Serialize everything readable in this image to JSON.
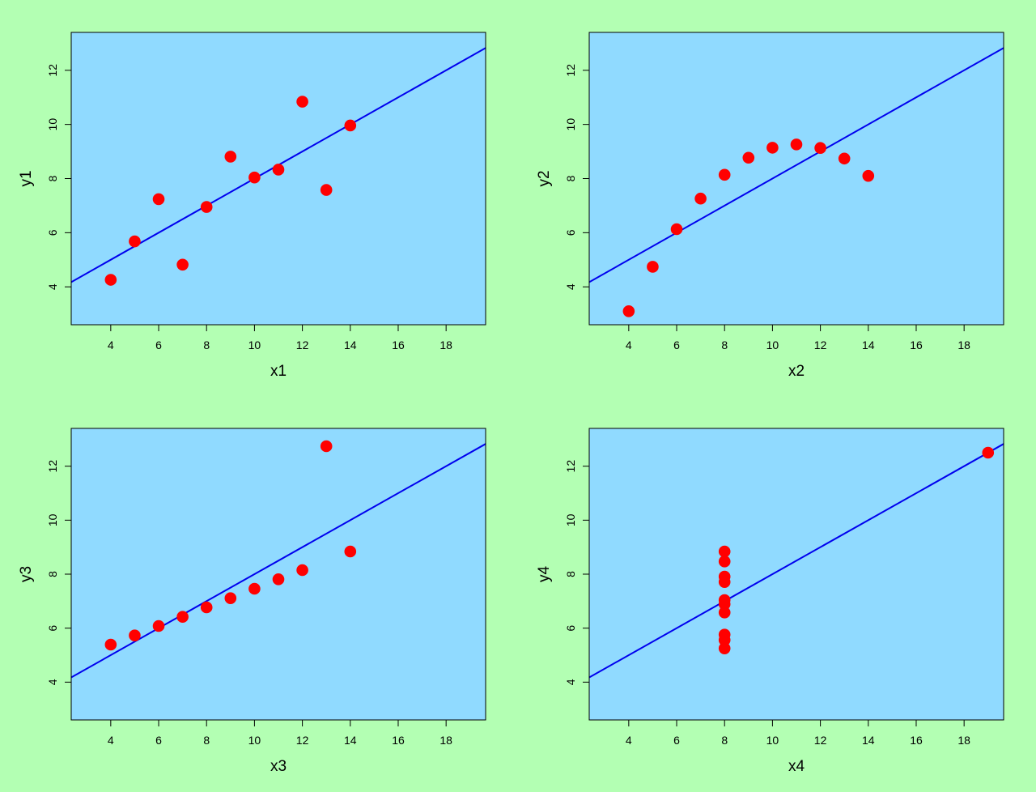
{
  "colors": {
    "figure_background": "#b3ffb3",
    "panel_background": "#90daff",
    "point": "#ff0000",
    "regression_line": "#0000ee",
    "axis": "#000000"
  },
  "chart_data": [
    {
      "type": "scatter",
      "xlabel": "x1",
      "ylabel": "y1",
      "xlim": [
        2.35,
        19.65
      ],
      "ylim": [
        2.6,
        13.4
      ],
      "xticks": [
        "4",
        "6",
        "8",
        "10",
        "12",
        "14",
        "16",
        "18"
      ],
      "yticks": [
        "4",
        "6",
        "8",
        "10",
        "12"
      ],
      "x": [
        10,
        8,
        13,
        9,
        11,
        14,
        6,
        4,
        12,
        7,
        5
      ],
      "y": [
        8.04,
        6.95,
        7.58,
        8.81,
        8.33,
        9.96,
        7.24,
        4.26,
        10.84,
        4.82,
        5.68
      ],
      "regression": {
        "intercept": 3.0,
        "slope": 0.5
      }
    },
    {
      "type": "scatter",
      "xlabel": "x2",
      "ylabel": "y2",
      "xlim": [
        2.35,
        19.65
      ],
      "ylim": [
        2.6,
        13.4
      ],
      "xticks": [
        "4",
        "6",
        "8",
        "10",
        "12",
        "14",
        "16",
        "18"
      ],
      "yticks": [
        "4",
        "6",
        "8",
        "10",
        "12"
      ],
      "x": [
        10,
        8,
        13,
        9,
        11,
        14,
        6,
        4,
        12,
        7,
        5
      ],
      "y": [
        9.14,
        8.14,
        8.74,
        8.77,
        9.26,
        8.1,
        6.13,
        3.1,
        9.13,
        7.26,
        4.74
      ],
      "regression": {
        "intercept": 3.0,
        "slope": 0.5
      }
    },
    {
      "type": "scatter",
      "xlabel": "x3",
      "ylabel": "y3",
      "xlim": [
        2.35,
        19.65
      ],
      "ylim": [
        2.6,
        13.4
      ],
      "xticks": [
        "4",
        "6",
        "8",
        "10",
        "12",
        "14",
        "16",
        "18"
      ],
      "yticks": [
        "4",
        "6",
        "8",
        "10",
        "12"
      ],
      "x": [
        10,
        8,
        13,
        9,
        11,
        14,
        6,
        4,
        12,
        7,
        5
      ],
      "y": [
        7.46,
        6.77,
        12.74,
        7.11,
        7.81,
        8.84,
        6.08,
        5.39,
        8.15,
        6.42,
        5.73
      ],
      "regression": {
        "intercept": 3.0,
        "slope": 0.5
      }
    },
    {
      "type": "scatter",
      "xlabel": "x4",
      "ylabel": "y4",
      "xlim": [
        2.35,
        19.65
      ],
      "ylim": [
        2.6,
        13.4
      ],
      "xticks": [
        "4",
        "6",
        "8",
        "10",
        "12",
        "14",
        "16",
        "18"
      ],
      "yticks": [
        "4",
        "6",
        "8",
        "10",
        "12"
      ],
      "x": [
        8,
        8,
        8,
        8,
        8,
        8,
        8,
        19,
        8,
        8,
        8
      ],
      "y": [
        6.58,
        5.76,
        7.71,
        8.84,
        8.47,
        7.04,
        5.25,
        12.5,
        5.56,
        7.91,
        6.89
      ],
      "regression": {
        "intercept": 3.0,
        "slope": 0.5
      }
    }
  ]
}
